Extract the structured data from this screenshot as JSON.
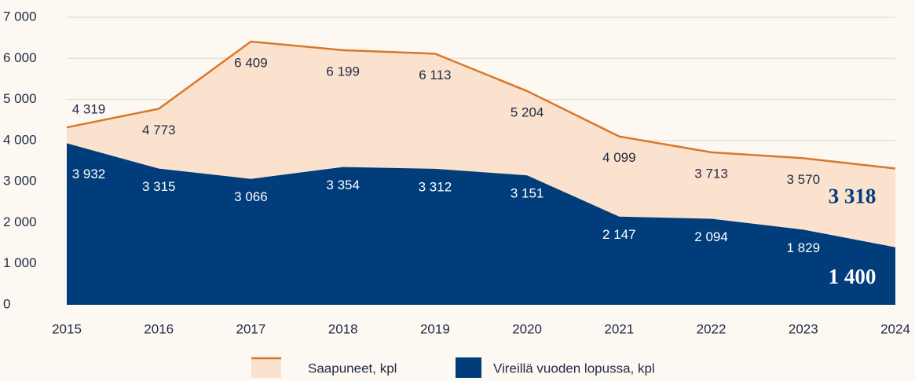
{
  "chart_data": {
    "type": "area",
    "categories": [
      "2015",
      "2016",
      "2017",
      "2018",
      "2019",
      "2020",
      "2021",
      "2022",
      "2023",
      "2024"
    ],
    "series": [
      {
        "name": "Saapuneet, kpl",
        "color": "#d9782a",
        "fill": "#fbe2cf",
        "values": [
          4319,
          4773,
          6409,
          6199,
          6113,
          5204,
          4099,
          3713,
          3570,
          3318
        ],
        "value_labels": [
          "4 319",
          "4 773",
          "6 409",
          "6 199",
          "6 113",
          "5 204",
          "4 099",
          "3 713",
          "3 570",
          "3 318"
        ]
      },
      {
        "name": "Vireillä vuoden lopussa, kpl",
        "color": "#003d7a",
        "fill": "#003d7a",
        "values": [
          3932,
          3315,
          3066,
          3354,
          3312,
          3151,
          2147,
          2094,
          1829,
          1400
        ],
        "value_labels": [
          "3 932",
          "3 315",
          "3 066",
          "3 354",
          "3 312",
          "3 151",
          "2 147",
          "2 094",
          "1 829",
          "1 400"
        ]
      }
    ],
    "ylim": [
      0,
      7000
    ],
    "yticks": [
      0,
      {
        "value": 1000,
        "label": "1 000"
      },
      {
        "value": 2000,
        "label": "2 000"
      },
      {
        "value": 3000,
        "label": "3 000"
      },
      {
        "value": 4000,
        "label": "4 000"
      },
      {
        "value": 5000,
        "label": "5 000"
      },
      {
        "value": 6000,
        "label": "6 000"
      },
      {
        "value": 7000,
        "label": "7 000"
      }
    ],
    "grid": true,
    "legend": "bottom"
  }
}
